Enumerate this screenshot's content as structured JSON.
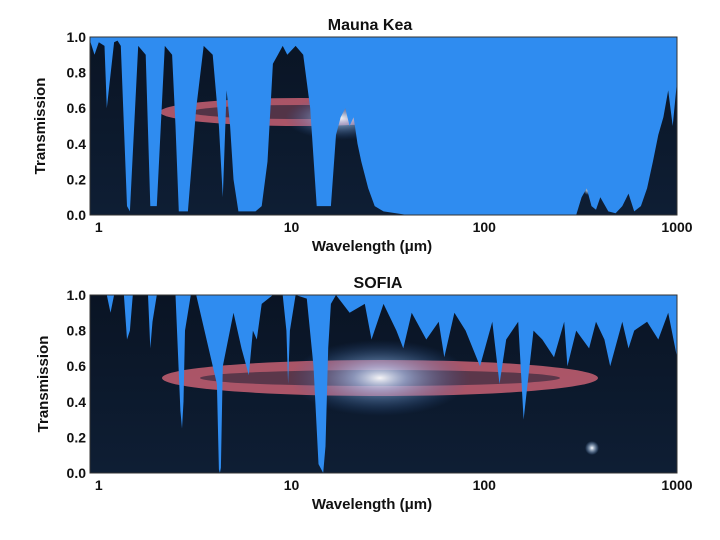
{
  "chart_data": [
    {
      "type": "area",
      "title": "Mauna Kea",
      "xlabel": "Wavelength (μm)",
      "ylabel": "Transmission",
      "x_scale": "log",
      "xlim": [
        0.9,
        1000
      ],
      "ylim": [
        0,
        1
      ],
      "x_ticks": [
        1,
        10,
        100,
        1000
      ],
      "x_tick_labels": [
        "1",
        "10",
        "100",
        "1000"
      ],
      "y_ticks": [
        0,
        0.2,
        0.4,
        0.6,
        0.8,
        1
      ],
      "y_tick_labels": [
        "0.0",
        "0.2",
        "0.4",
        "0.6",
        "0.8",
        "1.0"
      ],
      "grid": false,
      "colors": {
        "absorption": "#2f8cf0",
        "sky": "#0b1a2e"
      },
      "x": [
        0.9,
        0.95,
        1.0,
        1.07,
        1.1,
        1.2,
        1.25,
        1.3,
        1.4,
        1.45,
        1.6,
        1.75,
        1.85,
        2.0,
        2.2,
        2.4,
        2.5,
        2.6,
        2.9,
        3.2,
        3.5,
        3.9,
        4.2,
        4.4,
        4.6,
        4.8,
        5.0,
        5.3,
        5.8,
        6.5,
        7.0,
        7.5,
        8.0,
        8.5,
        9.0,
        9.5,
        10.5,
        11.5,
        12.5,
        13.5,
        14.5,
        16,
        17,
        18,
        19,
        20,
        21,
        22,
        23,
        25,
        27,
        30,
        40,
        60,
        100,
        200,
        300,
        320,
        340,
        360,
        380,
        400,
        440,
        480,
        520,
        560,
        600,
        650,
        700,
        750,
        800,
        850,
        900,
        950,
        1000
      ],
      "y": [
        0.98,
        0.9,
        0.97,
        0.95,
        0.6,
        0.97,
        0.98,
        0.95,
        0.05,
        0.02,
        0.95,
        0.9,
        0.05,
        0.05,
        0.95,
        0.9,
        0.5,
        0.02,
        0.02,
        0.6,
        0.95,
        0.9,
        0.5,
        0.1,
        0.7,
        0.5,
        0.2,
        0.02,
        0.02,
        0.02,
        0.05,
        0.3,
        0.85,
        0.9,
        0.95,
        0.9,
        0.95,
        0.9,
        0.6,
        0.05,
        0.05,
        0.05,
        0.45,
        0.55,
        0.6,
        0.5,
        0.55,
        0.4,
        0.3,
        0.15,
        0.05,
        0.02,
        0.0,
        0.0,
        0.0,
        0.0,
        0.0,
        0.1,
        0.15,
        0.05,
        0.03,
        0.1,
        0.02,
        0.01,
        0.05,
        0.12,
        0.02,
        0.05,
        0.15,
        0.3,
        0.45,
        0.55,
        0.7,
        0.5,
        0.75
      ]
    },
    {
      "type": "area",
      "title": "SOFIA",
      "xlabel": "Wavelength (μm)",
      "ylabel": "Transmission",
      "x_scale": "log",
      "xlim": [
        0.9,
        1000
      ],
      "ylim": [
        0,
        1
      ],
      "x_ticks": [
        1,
        10,
        100,
        1000
      ],
      "x_tick_labels": [
        "1",
        "10",
        "100",
        "1000"
      ],
      "y_ticks": [
        0,
        0.2,
        0.4,
        0.6,
        0.8,
        1
      ],
      "y_tick_labels": [
        "0.0",
        "0.2",
        "0.4",
        "0.6",
        "0.8",
        "1.0"
      ],
      "grid": false,
      "colors": {
        "absorption": "#2f8cf0",
        "sky": "#0b1a2e"
      },
      "x": [
        0.9,
        1.1,
        1.15,
        1.2,
        1.35,
        1.4,
        1.45,
        1.5,
        1.8,
        1.85,
        1.9,
        2.0,
        2.5,
        2.65,
        2.7,
        2.75,
        2.8,
        3.0,
        3.2,
        4.1,
        4.2,
        4.25,
        4.3,
        4.4,
        5.0,
        5.5,
        6.0,
        6.3,
        6.6,
        7.0,
        8.0,
        9.0,
        9.4,
        9.6,
        9.8,
        10.5,
        12.0,
        13.0,
        13.8,
        14.6,
        15.0,
        15.5,
        16.0,
        17.0,
        20,
        24,
        26,
        30,
        35,
        38,
        42,
        50,
        58,
        62,
        70,
        80,
        95,
        110,
        120,
        130,
        150,
        160,
        180,
        200,
        230,
        260,
        270,
        300,
        350,
        380,
        420,
        450,
        520,
        560,
        600,
        700,
        800,
        900,
        1000
      ],
      "y": [
        1.0,
        1.0,
        0.9,
        1.0,
        1.0,
        0.75,
        0.8,
        1.0,
        1.0,
        0.7,
        0.85,
        1.0,
        1.0,
        0.35,
        0.25,
        0.4,
        0.8,
        1.0,
        1.0,
        0.5,
        0.02,
        0.0,
        0.03,
        0.6,
        0.9,
        0.7,
        0.55,
        0.8,
        0.75,
        0.95,
        1.0,
        1.0,
        0.8,
        0.5,
        0.8,
        1.0,
        0.98,
        0.6,
        0.05,
        0.0,
        0.15,
        0.7,
        0.95,
        1.0,
        0.9,
        0.95,
        0.75,
        0.95,
        0.8,
        0.7,
        0.9,
        0.75,
        0.85,
        0.65,
        0.9,
        0.8,
        0.6,
        0.85,
        0.5,
        0.75,
        0.85,
        0.3,
        0.8,
        0.75,
        0.65,
        0.85,
        0.6,
        0.8,
        0.7,
        0.85,
        0.75,
        0.6,
        0.85,
        0.7,
        0.8,
        0.85,
        0.75,
        0.9,
        0.65
      ]
    }
  ]
}
